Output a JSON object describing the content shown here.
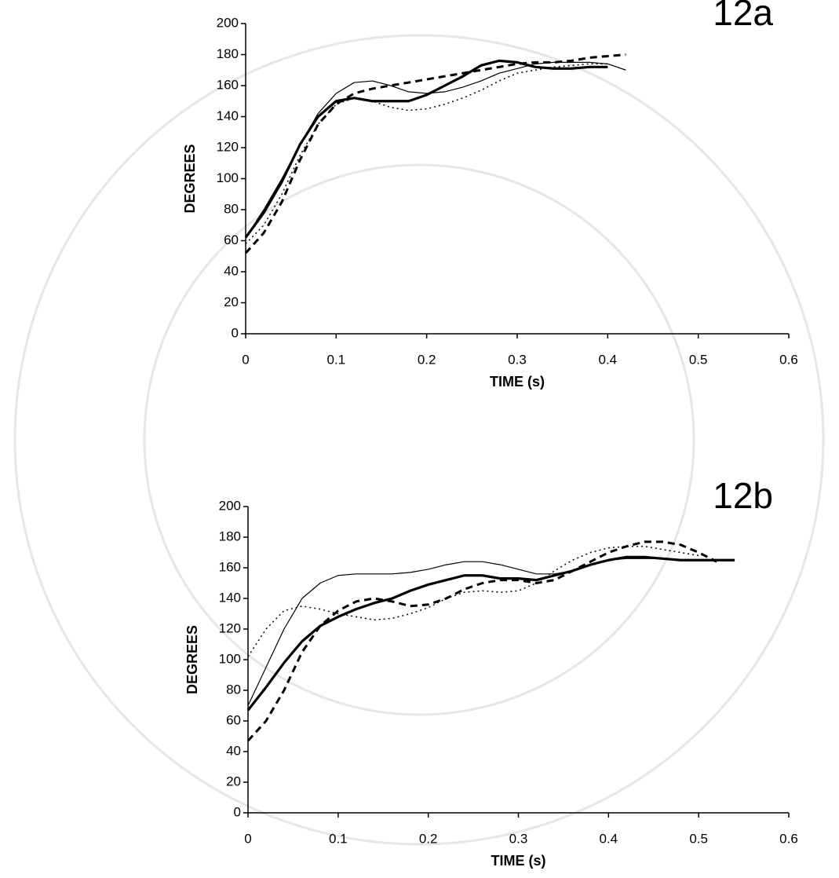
{
  "chart_data": [
    {
      "type": "line",
      "annotation": "12a",
      "y_label": "DEGREES",
      "x_label": "TIME (s)",
      "x": [
        0,
        0.02,
        0.04,
        0.06,
        0.08,
        0.1,
        0.12,
        0.14,
        0.16,
        0.18,
        0.2,
        0.22,
        0.24,
        0.26,
        0.28,
        0.3,
        0.32,
        0.34,
        0.36,
        0.38,
        0.4,
        0.42
      ],
      "series": [
        {
          "color": "#000000",
          "style": "thick",
          "values": [
            62,
            78,
            98,
            122,
            140,
            150,
            152,
            150,
            150,
            150,
            154,
            160,
            166,
            173,
            176,
            175,
            172,
            171,
            171,
            172,
            172,
            null
          ]
        },
        {
          "color": "#000000",
          "style": "thin",
          "values": [
            62,
            80,
            100,
            122,
            142,
            155,
            162,
            163,
            160,
            156,
            155,
            156,
            159,
            163,
            168,
            171,
            174,
            175,
            175,
            175,
            174,
            170
          ]
        },
        {
          "color": "#000000",
          "style": "dashed",
          "values": [
            52,
            65,
            85,
            112,
            135,
            148,
            155,
            158,
            160,
            162,
            164,
            166,
            168,
            170,
            172,
            174,
            175,
            175,
            176,
            178,
            179,
            180
          ]
        },
        {
          "color": "#000000",
          "style": "dotted",
          "values": [
            58,
            70,
            90,
            115,
            135,
            148,
            152,
            150,
            146,
            144,
            145,
            148,
            152,
            157,
            163,
            168,
            170,
            172,
            173,
            174,
            174,
            null
          ]
        }
      ],
      "xlim": [
        0,
        0.6
      ],
      "xticks": [
        0,
        0.1,
        0.2,
        0.3,
        0.4,
        0.5,
        0.6
      ],
      "ylim": [
        0,
        200
      ],
      "yticks": [
        0,
        20,
        40,
        60,
        80,
        100,
        120,
        140,
        160,
        180,
        200
      ]
    },
    {
      "type": "line",
      "annotation": "12b",
      "y_label": "DEGREES",
      "x_label": "TIME (s)",
      "x": [
        0,
        0.02,
        0.04,
        0.06,
        0.08,
        0.1,
        0.12,
        0.14,
        0.16,
        0.18,
        0.2,
        0.22,
        0.24,
        0.26,
        0.28,
        0.3,
        0.32,
        0.34,
        0.36,
        0.38,
        0.4,
        0.42,
        0.44,
        0.46,
        0.48,
        0.5,
        0.52,
        0.54
      ],
      "series": [
        {
          "color": "#000000",
          "style": "thick",
          "values": [
            67,
            82,
            98,
            112,
            122,
            128,
            133,
            137,
            140,
            145,
            149,
            152,
            155,
            155,
            153,
            153,
            152,
            155,
            158,
            162,
            165,
            167,
            167,
            166,
            165,
            165,
            165,
            165
          ]
        },
        {
          "color": "#000000",
          "style": "thin",
          "values": [
            70,
            95,
            120,
            140,
            150,
            155,
            156,
            156,
            156,
            157,
            159,
            162,
            164,
            164,
            162,
            159,
            156,
            156,
            158,
            162,
            165,
            166,
            166,
            166,
            165,
            165,
            165,
            165
          ]
        },
        {
          "color": "#000000",
          "style": "dashed",
          "values": [
            47,
            60,
            80,
            105,
            122,
            132,
            138,
            140,
            138,
            135,
            136,
            140,
            146,
            150,
            152,
            152,
            150,
            152,
            158,
            164,
            170,
            174,
            177,
            177,
            175,
            170,
            164,
            null
          ]
        },
        {
          "color": "#000000",
          "style": "dotted",
          "values": [
            102,
            120,
            132,
            135,
            133,
            130,
            128,
            126,
            127,
            130,
            134,
            140,
            144,
            145,
            144,
            145,
            150,
            158,
            165,
            170,
            173,
            174,
            174,
            172,
            170,
            168,
            null,
            null
          ]
        }
      ],
      "xlim": [
        0,
        0.6
      ],
      "xticks": [
        0,
        0.1,
        0.2,
        0.3,
        0.4,
        0.5,
        0.6
      ],
      "ylim": [
        0,
        200
      ],
      "yticks": [
        0,
        20,
        40,
        60,
        80,
        100,
        120,
        140,
        160,
        180,
        200
      ]
    }
  ]
}
